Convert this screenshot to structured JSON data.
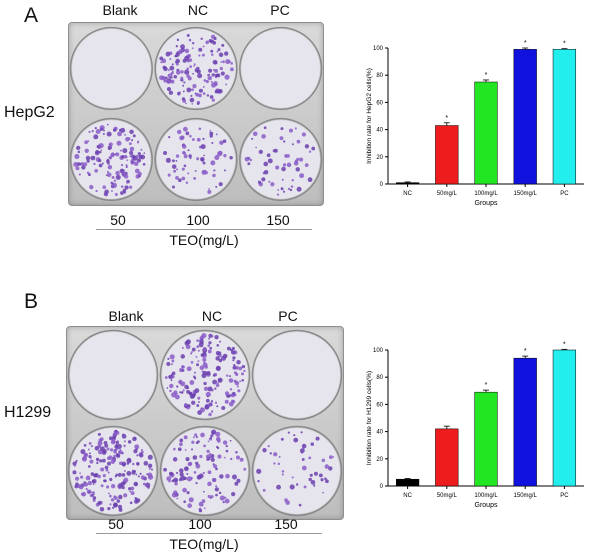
{
  "panels": [
    {
      "letter": "A",
      "cell_line": "HepG2",
      "top_labels": [
        "Blank",
        "NC",
        "PC"
      ],
      "dose_labels": [
        "50",
        "100",
        "150"
      ],
      "dose_axis_label": "TEO(mg/L)"
    },
    {
      "letter": "B",
      "cell_line": "H1299",
      "top_labels": [
        "Blank",
        "NC",
        "PC"
      ],
      "dose_labels": [
        "50",
        "100",
        "150"
      ],
      "dose_axis_label": "TEO(mg/L)"
    }
  ],
  "chart_data": [
    {
      "type": "bar",
      "categories": [
        "NC",
        "50mg/L",
        "100mg/L",
        "150mg/L",
        "PC"
      ],
      "values": [
        1,
        43,
        75,
        99,
        99
      ],
      "errors": [
        0.5,
        2,
        1.5,
        1,
        0.5
      ],
      "significance": [
        "",
        "*",
        "*",
        "*",
        "*"
      ],
      "colors": [
        "#000000",
        "#ee1c1c",
        "#22e622",
        "#1111dd",
        "#22eeee"
      ],
      "xlabel": "Groups",
      "ylabel": "Inhibition rate for HepG2 cells(%)",
      "ylim": [
        0,
        100
      ],
      "yticks": [
        0,
        20,
        40,
        60,
        80,
        100
      ],
      "grid": false
    },
    {
      "type": "bar",
      "categories": [
        "NC",
        "50mg/L",
        "100mg/L",
        "150mg/L",
        "PC"
      ],
      "values": [
        5,
        42,
        69,
        94,
        100
      ],
      "errors": [
        0.5,
        2,
        1.5,
        1.5,
        0.5
      ],
      "significance": [
        "",
        "",
        "*",
        "*",
        "*"
      ],
      "colors": [
        "#000000",
        "#ee1c1c",
        "#22e622",
        "#1111dd",
        "#22eeee"
      ],
      "xlabel": "Groups",
      "ylabel": "Inhibition rate for H1299 cells(%)",
      "ylim": [
        0,
        100
      ],
      "yticks": [
        0,
        20,
        40,
        60,
        80,
        100
      ],
      "grid": false
    }
  ]
}
